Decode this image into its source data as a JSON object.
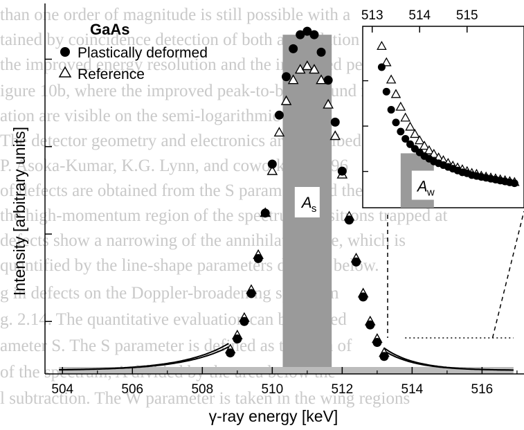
{
  "background_text": [
    "than one order of magnitude is still possible with a",
    "tained by coincidence detection of both annihilation quanta with a",
    "the improved energy resolution and the improved peak-to-background",
    "igure 10b, where the improved peak-to-background ratio",
    "ation are visible on the semi-logarithmic scale.",
    "The detector geometry and electronics are described e.g. in",
    "P. Asoka-Kumar, K.G. Lynn, and coworkers, 1996",
    "of defects are obtained from the S parameter and the W parameter",
    "the high-momentum region of the spectrum. Positrons trapped at",
    "defects show a narrowing of the annihilation line, which is",
    "quantified by the line-shape parameters defined below.",
    "g in defects on the Doppler-broadening spectrum",
    "g. 2.14. The quantitative evaluation can be carried",
    "ameter S. The S parameter is defined as the area of",
    "of the spectrum, A divided by the area below the",
    "l subtraction. The W parameter is taken in the wing regions"
  ],
  "chart_data": {
    "type": "scatter",
    "title": "GaAs",
    "xlabel": "γ-ray energy [keV]",
    "ylabel": "Intensity [arbitrary units]",
    "xlim": [
      503.5,
      517.2
    ],
    "ylim": [
      0,
      1.0
    ],
    "x_ticks": [
      504,
      506,
      508,
      510,
      512,
      514,
      516
    ],
    "y_tick_labels": false,
    "legend": {
      "position": "top-left"
    },
    "series": [
      {
        "name": "Plastically deformed",
        "marker": "filled-circle",
        "x": [
          508.8,
          509.0,
          509.2,
          509.4,
          509.6,
          509.8,
          510.0,
          510.2,
          510.4,
          510.6,
          510.8,
          511.0,
          511.2,
          511.4,
          511.6,
          511.8,
          512.0,
          512.2,
          512.4,
          512.6,
          512.8,
          513.0,
          513.2
        ],
        "y": [
          0.06,
          0.1,
          0.15,
          0.23,
          0.33,
          0.46,
          0.6,
          0.74,
          0.85,
          0.93,
          0.97,
          0.98,
          0.97,
          0.92,
          0.84,
          0.72,
          0.58,
          0.44,
          0.32,
          0.22,
          0.14,
          0.09,
          0.05
        ]
      },
      {
        "name": "Reference",
        "marker": "open-triangle",
        "x": [
          508.8,
          509.0,
          509.2,
          509.4,
          509.6,
          509.8,
          510.0,
          510.2,
          510.4,
          510.6,
          510.8,
          511.0,
          511.2,
          511.4,
          511.6,
          511.8,
          512.0,
          512.2,
          512.4,
          512.6,
          512.8,
          513.0,
          513.2
        ],
        "y": [
          0.07,
          0.11,
          0.16,
          0.24,
          0.34,
          0.46,
          0.58,
          0.69,
          0.78,
          0.84,
          0.87,
          0.88,
          0.87,
          0.84,
          0.77,
          0.68,
          0.57,
          0.45,
          0.33,
          0.23,
          0.15,
          0.1,
          0.06
        ]
      }
    ],
    "shaded_regions": [
      {
        "label_main": "A",
        "label_sub": "s",
        "x_range": [
          510.3,
          511.7
        ]
      },
      {
        "label_main": "A",
        "label_sub": "w",
        "x_range": [
          513.2,
          513.8
        ]
      },
      {
        "label_main": "",
        "label_sub": "",
        "x_range": [
          508.0,
          508.5
        ]
      }
    ],
    "inset": {
      "x_ticks": [
        513,
        514,
        515
      ],
      "xlim": [
        512.8,
        516.2
      ],
      "ylim": [
        0,
        0.2
      ],
      "shaded_x_range": [
        513.6,
        514.3
      ],
      "series_points": {
        "Plastically deformed": {
          "x": [
            513.2,
            513.3,
            513.4,
            513.5,
            513.6,
            513.7,
            513.8,
            513.9,
            514.0,
            514.1,
            514.2,
            514.3,
            514.4,
            514.5,
            514.6,
            514.7,
            514.8,
            514.9,
            515.0,
            515.1,
            515.2,
            515.3,
            515.4,
            515.5,
            515.6,
            515.7,
            515.8,
            515.9,
            516.0
          ],
          "y": [
            0.155,
            0.128,
            0.108,
            0.094,
            0.084,
            0.076,
            0.07,
            0.065,
            0.061,
            0.057,
            0.054,
            0.051,
            0.049,
            0.047,
            0.045,
            0.043,
            0.041,
            0.039,
            0.038,
            0.036,
            0.035,
            0.034,
            0.033,
            0.032,
            0.031,
            0.03,
            0.029,
            0.028,
            0.027
          ]
        },
        "Reference": {
          "x": [
            513.2,
            513.3,
            513.4,
            513.5,
            513.6,
            513.7,
            513.8,
            513.9,
            514.0,
            514.1,
            514.2,
            514.3,
            514.4,
            514.5,
            514.6,
            514.7,
            514.8,
            514.9,
            515.0,
            515.1,
            515.2,
            515.3,
            515.4,
            515.5,
            515.6,
            515.7,
            515.8,
            515.9,
            516.0
          ],
          "y": [
            0.178,
            0.16,
            0.141,
            0.125,
            0.111,
            0.099,
            0.089,
            0.081,
            0.074,
            0.068,
            0.063,
            0.059,
            0.055,
            0.052,
            0.049,
            0.046,
            0.044,
            0.042,
            0.04,
            0.038,
            0.037,
            0.035,
            0.034,
            0.033,
            0.032,
            0.031,
            0.03,
            0.029,
            0.028
          ]
        }
      }
    }
  }
}
